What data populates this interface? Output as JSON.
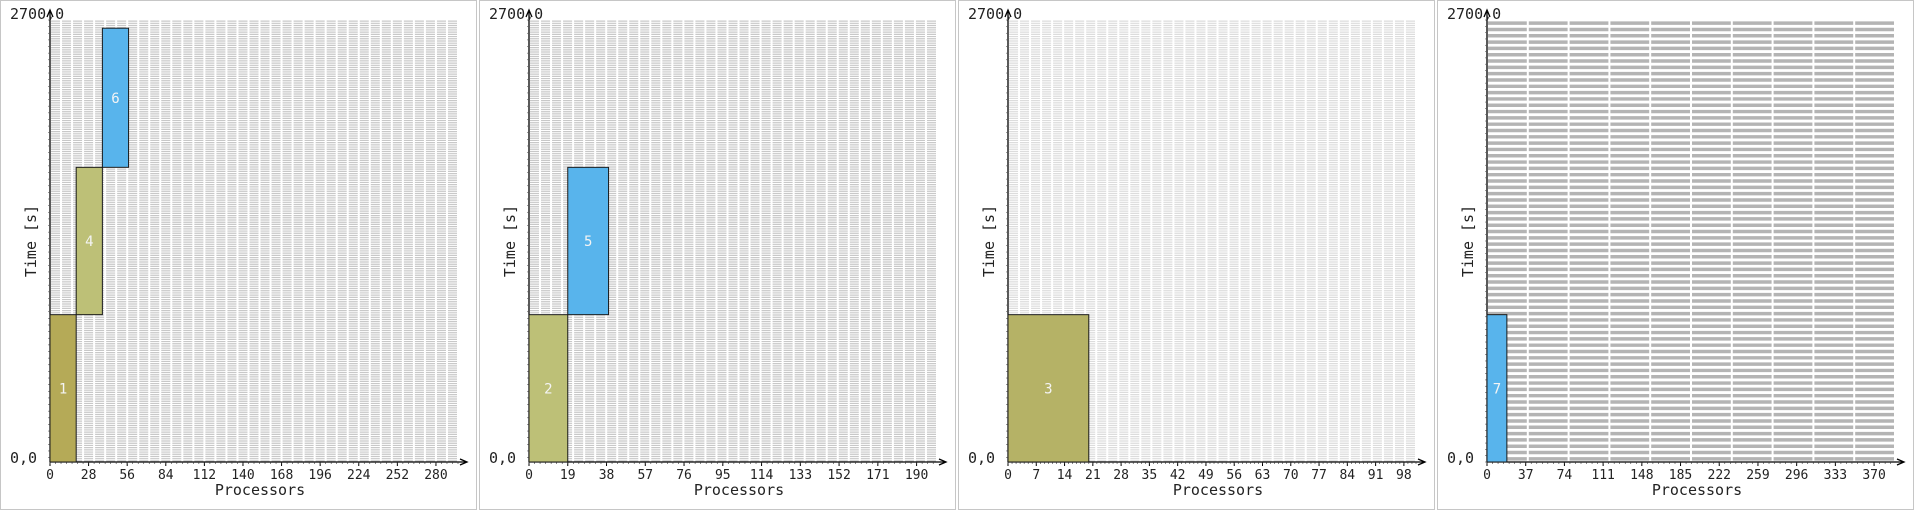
{
  "chart_data": [
    {
      "type": "bar",
      "xlabel": "Processors",
      "ylabel": "Time [s]",
      "ylim": [
        0,
        2700
      ],
      "ymin_label": "0,0",
      "ymax_label": "2700,0",
      "xlim": [
        0,
        296
      ],
      "xticks": [
        0,
        28,
        56,
        84,
        112,
        140,
        168,
        196,
        224,
        252,
        280
      ],
      "grid_rows": 200,
      "grid_cols": 37,
      "grid_color": "#c8c8c8",
      "jobs": [
        {
          "label": "1",
          "x_start": 0,
          "x_end": 19,
          "t_start": 0,
          "t_end": 900,
          "color": "#b5aa57"
        },
        {
          "label": "4",
          "x_start": 19,
          "x_end": 38,
          "t_start": 900,
          "t_end": 1800,
          "color": "#bdc077"
        },
        {
          "label": "6",
          "x_start": 38,
          "x_end": 57,
          "t_start": 1800,
          "t_end": 2650,
          "color": "#58b4ec"
        }
      ]
    },
    {
      "type": "bar",
      "xlabel": "Processors",
      "ylabel": "Time [s]",
      "ylim": [
        0,
        2700
      ],
      "ymin_label": "0,0",
      "ymax_label": "2700,0",
      "xlim": [
        0,
        200
      ],
      "xticks": [
        0,
        19,
        38,
        57,
        76,
        95,
        114,
        133,
        152,
        171,
        190
      ],
      "grid_rows": 200,
      "grid_cols": 37,
      "grid_color": "#c8c8c8",
      "jobs": [
        {
          "label": "2",
          "x_start": 0,
          "x_end": 19,
          "t_start": 0,
          "t_end": 900,
          "color": "#bdc077"
        },
        {
          "label": "5",
          "x_start": 19,
          "x_end": 39,
          "t_start": 900,
          "t_end": 1800,
          "color": "#58b4ec"
        }
      ]
    },
    {
      "type": "bar",
      "xlabel": "Processors",
      "ylabel": "Time [s]",
      "ylim": [
        0,
        2700
      ],
      "ymin_label": "0,0",
      "ymax_label": "2700,0",
      "xlim": [
        0,
        101
      ],
      "xticks": [
        0,
        7,
        14,
        21,
        28,
        35,
        42,
        49,
        56,
        63,
        70,
        77,
        84,
        91,
        98
      ],
      "grid_rows": 200,
      "grid_cols": 37,
      "grid_color": "#dcdcdc",
      "jobs": [
        {
          "label": "3",
          "x_start": 0,
          "x_end": 20,
          "t_start": 0,
          "t_end": 900,
          "color": "#b5b266"
        }
      ]
    },
    {
      "type": "bar",
      "xlabel": "Processors",
      "ylabel": "Time [s]",
      "ylim": [
        0,
        2700
      ],
      "ymin_label": "0,0",
      "ymax_label": "2700,0",
      "xlim": [
        0,
        390
      ],
      "xticks": [
        0,
        37,
        74,
        111,
        148,
        185,
        222,
        259,
        296,
        333,
        370
      ],
      "grid_rows": 70,
      "grid_cols": 10,
      "grid_color": "#b4b4b4",
      "jobs": [
        {
          "label": "7",
          "x_start": 0,
          "x_end": 19,
          "t_start": 0,
          "t_end": 900,
          "color": "#58b4ec"
        }
      ]
    }
  ]
}
